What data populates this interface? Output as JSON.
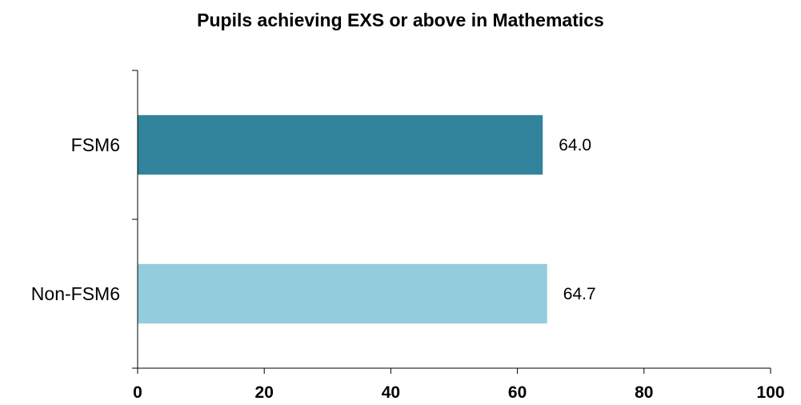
{
  "chart_data": {
    "type": "bar",
    "orientation": "horizontal",
    "title": "Pupils achieving EXS or above in Mathematics",
    "xlabel": "",
    "ylabel": "",
    "categories": [
      "FSM6",
      "Non-FSM6"
    ],
    "values": [
      64.0,
      64.7
    ],
    "value_labels": [
      "64.0",
      "64.7"
    ],
    "colors": [
      "#31849b",
      "#93cddd"
    ],
    "xlim": [
      0,
      100
    ],
    "xticks": [
      0,
      20,
      40,
      60,
      80,
      100
    ],
    "xtick_labels": [
      "0",
      "20",
      "40",
      "60",
      "80",
      "100"
    ],
    "grid": false,
    "legend": "none"
  }
}
